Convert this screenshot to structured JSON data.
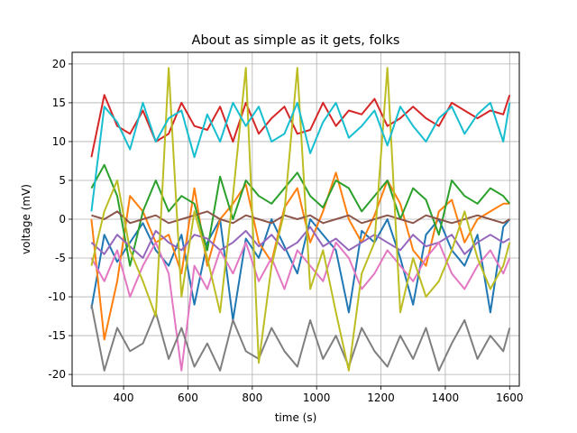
{
  "chart_data": {
    "type": "line",
    "title": "About as simple as it gets, folks",
    "xlabel": "time (s)",
    "ylabel": "voltage (mV)",
    "xlim": [
      240,
      1630
    ],
    "ylim": [
      -21.5,
      21.5
    ],
    "x_ticks": [
      400,
      600,
      800,
      1000,
      1200,
      1400,
      1600
    ],
    "y_ticks": [
      -20,
      -15,
      -10,
      -5,
      0,
      5,
      10,
      15,
      20
    ],
    "grid": true,
    "legend": "none",
    "sample_x": [
      300,
      340,
      380,
      420,
      460,
      500,
      540,
      580,
      620,
      660,
      700,
      740,
      780,
      820,
      860,
      900,
      940,
      980,
      1020,
      1060,
      1100,
      1140,
      1180,
      1220,
      1260,
      1300,
      1340,
      1380,
      1420,
      1460,
      1500,
      1540,
      1580,
      1600
    ],
    "series": [
      {
        "color": "#1f77b4",
        "values": [
          -11.5,
          -2,
          -5.5,
          -3,
          -0.5,
          -4,
          -6,
          -2,
          -11,
          -3,
          0,
          -13,
          -2.5,
          -5,
          0,
          -3.5,
          -7,
          0,
          -2,
          -4,
          -12,
          -1.5,
          -3,
          0,
          -5,
          -11,
          -2,
          0,
          -4,
          -6,
          -2,
          -12,
          -1,
          0
        ]
      },
      {
        "color": "#ff7f0e",
        "values": [
          0,
          -15.5,
          -8,
          3,
          1,
          -3,
          -2,
          -7,
          4,
          -6,
          0,
          2,
          4.5,
          -3,
          -5.5,
          1.5,
          4,
          -3,
          1,
          6,
          0,
          -3,
          0.5,
          5,
          2,
          -4,
          -6,
          1,
          2.5,
          -3,
          0,
          1,
          2,
          2
        ]
      },
      {
        "color": "#2ca02c",
        "values": [
          4,
          7,
          3,
          -6,
          1,
          5,
          1,
          3,
          2,
          -4,
          5.5,
          0,
          5,
          3,
          2,
          4,
          6,
          3,
          1.5,
          5,
          4,
          1,
          3,
          5,
          0,
          4,
          2.5,
          -2,
          5,
          3,
          2,
          4,
          3,
          2
        ]
      },
      {
        "color": "#d62728",
        "values": [
          8,
          16,
          12,
          11,
          14,
          10,
          11,
          15,
          12,
          11.5,
          14.5,
          10,
          15,
          11,
          13,
          14.5,
          11,
          11.5,
          15,
          12,
          14,
          13.5,
          15.5,
          12,
          13,
          14.5,
          13,
          12,
          15,
          14,
          13,
          14,
          13.5,
          16
        ]
      },
      {
        "color": "#9467bd",
        "values": [
          -3,
          -4.5,
          -2,
          -3.5,
          -5,
          -1.5,
          -3,
          -4,
          -2,
          -2.5,
          -4,
          -3,
          -1.5,
          -3.5,
          -2,
          -4,
          -3,
          -1,
          -3.5,
          -2.5,
          -4,
          -3,
          -2,
          -3,
          -4,
          -2,
          -3.5,
          -3,
          -2,
          -4.5,
          -3,
          -2,
          -3,
          -2.5
        ]
      },
      {
        "color": "#8c564b",
        "values": [
          0.5,
          0,
          1,
          -0.5,
          0,
          0.5,
          -0.5,
          0,
          0.5,
          1,
          0,
          -0.5,
          0.5,
          0,
          -0.5,
          0.5,
          0,
          0.5,
          -0.5,
          0,
          0.5,
          -0.5,
          0,
          0.5,
          0,
          -0.5,
          0.5,
          0,
          -0.5,
          0,
          0.5,
          0,
          -0.5,
          0
        ]
      },
      {
        "color": "#e377c2",
        "values": [
          -5,
          -8,
          -4,
          -10,
          -6,
          -3,
          -7,
          -19.5,
          -6,
          -9,
          -4,
          -7,
          -3,
          -8,
          -5,
          -9,
          -4,
          -6,
          -8,
          -3,
          -5,
          -9,
          -7,
          -4,
          -6,
          -8,
          -5,
          -3,
          -7,
          -9,
          -6,
          -4,
          -7,
          -5
        ]
      },
      {
        "color": "#7f7f7f",
        "values": [
          -11,
          -19.5,
          -14,
          -17,
          -16,
          -12,
          -18,
          -14,
          -19,
          -16,
          -19.5,
          -13,
          -17,
          -18,
          -14,
          -17,
          -19,
          -13,
          -18,
          -15,
          -19,
          -14,
          -17,
          -19,
          -15,
          -18,
          -14,
          -19.5,
          -16,
          -13,
          -18,
          -15,
          -17,
          -14
        ]
      },
      {
        "color": "#bcbd22",
        "values": [
          -6,
          1,
          5,
          -4,
          -8,
          -12.5,
          19.5,
          -10,
          1,
          -5,
          -12,
          3,
          19.5,
          -18.5,
          -6,
          1,
          19.5,
          -9,
          -4,
          -12,
          -19.5,
          -7,
          -3,
          19.5,
          -12,
          -5,
          -10,
          -8,
          -4,
          1,
          -5,
          -9,
          -6,
          -3
        ]
      },
      {
        "color": "#17becf",
        "values": [
          1,
          14.5,
          12.5,
          9,
          15,
          10,
          13,
          14,
          8,
          13.5,
          10,
          15,
          12,
          14.5,
          10,
          11,
          15,
          8.5,
          12.5,
          15,
          10.5,
          12,
          14,
          9.5,
          14.5,
          12,
          10,
          13,
          14.5,
          11,
          13.5,
          15,
          10,
          15
        ]
      }
    ]
  }
}
